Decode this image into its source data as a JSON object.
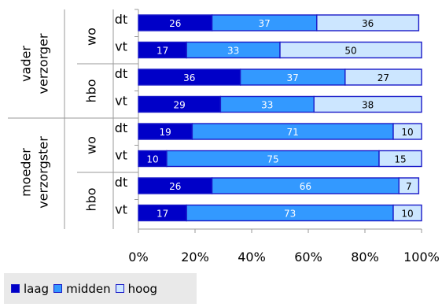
{
  "chart_data": {
    "type": "bar",
    "orientation": "horizontal",
    "stacked": true,
    "percent_stacked": true,
    "groups": [
      {
        "label_lines": [
          "vader",
          "verzorger"
        ],
        "subgroups": [
          {
            "label": "wo",
            "rows": [
              {
                "label": "dt",
                "values": [
                  26,
                  37,
                  36
                ]
              },
              {
                "label": "vt",
                "values": [
                  17,
                  33,
                  50
                ]
              }
            ]
          },
          {
            "label": "hbo",
            "rows": [
              {
                "label": "dt",
                "values": [
                  36,
                  37,
                  27
                ]
              },
              {
                "label": "vt",
                "values": [
                  29,
                  33,
                  38
                ]
              }
            ]
          }
        ]
      },
      {
        "label_lines": [
          "moeder",
          "verzorgster"
        ],
        "subgroups": [
          {
            "label": "wo",
            "rows": [
              {
                "label": "dt",
                "values": [
                  19,
                  71,
                  10
                ]
              },
              {
                "label": "vt",
                "values": [
                  10,
                  75,
                  15
                ]
              }
            ]
          },
          {
            "label": "hbo",
            "rows": [
              {
                "label": "dt",
                "values": [
                  26,
                  66,
                  7
                ]
              },
              {
                "label": "vt",
                "values": [
                  17,
                  73,
                  10
                ]
              }
            ]
          }
        ]
      }
    ],
    "series": [
      {
        "name": "laag",
        "color": "#0000c8"
      },
      {
        "name": "midden",
        "color": "#3399ff"
      },
      {
        "name": "hoog",
        "color": "#cce6ff"
      }
    ],
    "xticks": [
      "0%",
      "20%",
      "40%",
      "60%",
      "80%",
      "100%"
    ],
    "xlim": [
      0,
      100
    ],
    "legend_position": "bottom-left",
    "grid": false
  }
}
